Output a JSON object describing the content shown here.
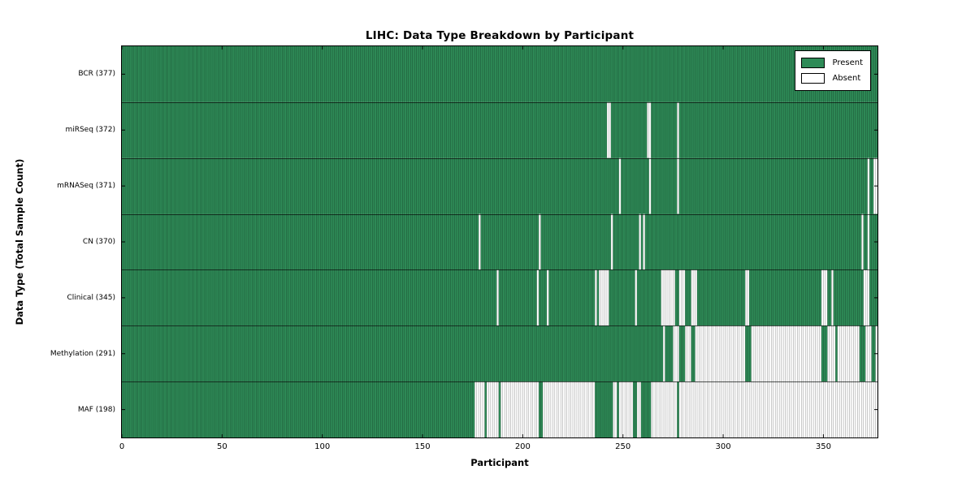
{
  "chart_data": {
    "type": "heatmap",
    "title": "LIHC: Data Type Breakdown by Participant",
    "xlabel": "Participant",
    "ylabel": "Data Type (Total Sample Count)",
    "x_ticks": [
      0,
      50,
      100,
      150,
      200,
      250,
      300,
      350
    ],
    "x_range": [
      0,
      377
    ],
    "n_participants": 377,
    "grid": false,
    "legend_position": "upper right",
    "colors": {
      "present": "#2e8b57",
      "absent": "#ffffff",
      "cell_edge": "rgba(0,0,0,0.40)",
      "row_edge": "rgba(0,0,0,0.65)",
      "frame": "#000000"
    },
    "legend_items": [
      {
        "label": "Present",
        "color": "#2e8b57"
      },
      {
        "label": "Absent",
        "color": "#ffffff"
      }
    ],
    "rows": [
      {
        "label": "BCR (377)",
        "data_type": "BCR",
        "present_count": 377,
        "absent_ranges": []
      },
      {
        "label": "miRSeq (372)",
        "data_type": "miRSeq",
        "present_count": 372,
        "absent_ranges": [
          [
            242,
            243
          ],
          [
            262,
            263
          ],
          [
            277,
            277
          ]
        ]
      },
      {
        "label": "mRNASeq (371)",
        "data_type": "mRNASeq",
        "present_count": 371,
        "absent_ranges": [
          [
            248,
            248
          ],
          [
            263,
            263
          ],
          [
            277,
            277
          ],
          [
            372,
            372
          ],
          [
            375,
            376
          ]
        ]
      },
      {
        "label": "CN (370)",
        "data_type": "CN",
        "present_count": 370,
        "absent_ranges": [
          [
            178,
            178
          ],
          [
            208,
            208
          ],
          [
            244,
            244
          ],
          [
            258,
            258
          ],
          [
            260,
            260
          ],
          [
            369,
            369
          ],
          [
            372,
            372
          ]
        ]
      },
      {
        "label": "Clinical (345)",
        "data_type": "Clinical",
        "present_count": 345,
        "absent_ranges": [
          [
            187,
            187
          ],
          [
            207,
            207
          ],
          [
            212,
            212
          ],
          [
            236,
            236
          ],
          [
            238,
            242
          ],
          [
            256,
            256
          ],
          [
            269,
            275
          ],
          [
            278,
            280
          ],
          [
            284,
            286
          ],
          [
            311,
            312
          ],
          [
            349,
            351
          ],
          [
            354,
            354
          ],
          [
            370,
            372
          ]
        ]
      },
      {
        "label": "Methylation (291)",
        "data_type": "Methylation",
        "present_count": 291,
        "absent_ranges": [
          [
            270,
            270
          ],
          [
            275,
            277
          ],
          [
            281,
            283
          ],
          [
            286,
            310
          ],
          [
            314,
            348
          ],
          [
            352,
            355
          ],
          [
            357,
            367
          ],
          [
            371,
            373
          ],
          [
            376,
            376
          ]
        ]
      },
      {
        "label": "MAF (198)",
        "data_type": "MAF",
        "present_count": 198,
        "absent_ranges": [
          [
            176,
            180
          ],
          [
            182,
            187
          ],
          [
            189,
            207
          ],
          [
            210,
            235
          ],
          [
            245,
            246
          ],
          [
            248,
            254
          ],
          [
            257,
            258
          ],
          [
            264,
            276
          ],
          [
            278,
            376
          ]
        ]
      }
    ]
  }
}
